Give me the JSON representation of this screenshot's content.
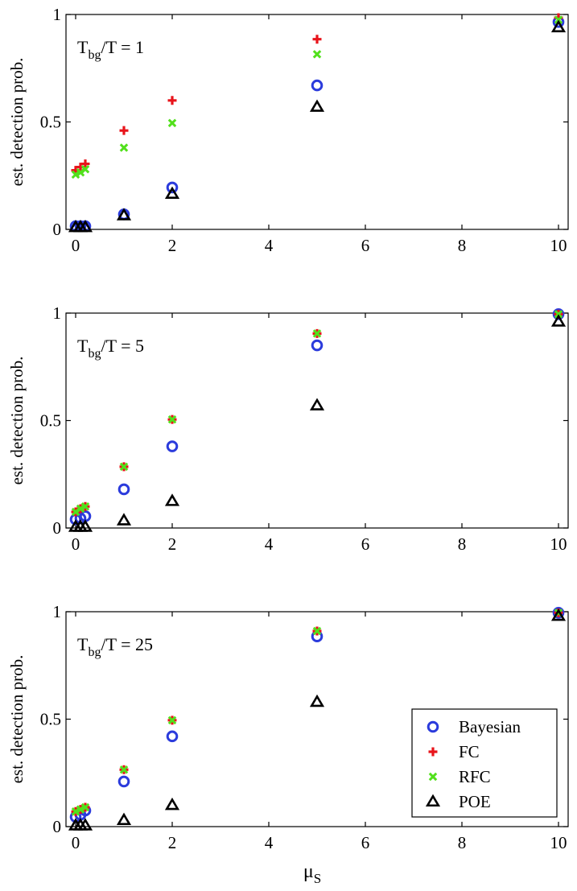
{
  "chart_data": [
    {
      "type": "scatter",
      "title": "",
      "annotation": {
        "main": "T",
        "sub": "bg",
        "rest": "/T = 1"
      },
      "xlabel": "",
      "ylabel": "est. detection prob.",
      "xlim": [
        -0.2,
        10.2
      ],
      "ylim": [
        0,
        1
      ],
      "xticks": [
        "0",
        "2",
        "4",
        "6",
        "8",
        "10"
      ],
      "yticks": [
        "0",
        "0.5",
        "1"
      ],
      "x": [
        0,
        0.1,
        0.2,
        1,
        2,
        5,
        10
      ],
      "series": [
        {
          "name": "Bayesian",
          "values": [
            0.015,
            0.015,
            0.015,
            0.07,
            0.195,
            0.67,
            0.965
          ]
        },
        {
          "name": "FC",
          "values": [
            0.275,
            0.29,
            0.305,
            0.46,
            0.6,
            0.885,
            0.985
          ]
        },
        {
          "name": "RFC",
          "values": [
            0.255,
            0.265,
            0.28,
            0.38,
            0.495,
            0.815,
            0.975
          ]
        },
        {
          "name": "POE",
          "values": [
            0.01,
            0.01,
            0.01,
            0.065,
            0.165,
            0.57,
            0.94
          ]
        }
      ]
    },
    {
      "type": "scatter",
      "title": "",
      "annotation": {
        "main": "T",
        "sub": "bg",
        "rest": "/T = 5"
      },
      "xlabel": "",
      "ylabel": "est. detection prob.",
      "xlim": [
        -0.2,
        10.2
      ],
      "ylim": [
        0,
        1
      ],
      "xticks": [
        "0",
        "2",
        "4",
        "6",
        "8",
        "10"
      ],
      "yticks": [
        "0",
        "0.5",
        "1"
      ],
      "x": [
        0,
        0.1,
        0.2,
        1,
        2,
        5,
        10
      ],
      "series": [
        {
          "name": "Bayesian",
          "values": [
            0.04,
            0.045,
            0.055,
            0.18,
            0.38,
            0.85,
            0.995
          ]
        },
        {
          "name": "FC",
          "values": [
            0.075,
            0.09,
            0.1,
            0.285,
            0.505,
            0.905,
            0.995
          ]
        },
        {
          "name": "RFC",
          "values": [
            0.075,
            0.09,
            0.1,
            0.285,
            0.505,
            0.905,
            0.995
          ]
        },
        {
          "name": "POE",
          "values": [
            0.005,
            0.005,
            0.005,
            0.035,
            0.125,
            0.57,
            0.96
          ]
        }
      ]
    },
    {
      "type": "scatter",
      "title": "",
      "annotation": {
        "main": "T",
        "sub": "bg",
        "rest": "/T = 25"
      },
      "xlabel": "μ",
      "xlabel_sub": "S",
      "ylabel": "est. detection prob.",
      "xlim": [
        -0.2,
        10.2
      ],
      "ylim": [
        0,
        1
      ],
      "xticks": [
        "0",
        "2",
        "4",
        "6",
        "8",
        "10"
      ],
      "yticks": [
        "0",
        "0.5",
        "1"
      ],
      "x": [
        0,
        0.1,
        0.2,
        1,
        2,
        5,
        10
      ],
      "series": [
        {
          "name": "Bayesian",
          "values": [
            0.045,
            0.055,
            0.075,
            0.21,
            0.42,
            0.885,
            0.995
          ]
        },
        {
          "name": "FC",
          "values": [
            0.07,
            0.08,
            0.09,
            0.265,
            0.495,
            0.91,
            0.995
          ]
        },
        {
          "name": "RFC",
          "values": [
            0.07,
            0.08,
            0.09,
            0.265,
            0.495,
            0.91,
            0.995
          ]
        },
        {
          "name": "POE",
          "values": [
            0.005,
            0.005,
            0.005,
            0.03,
            0.1,
            0.58,
            0.98
          ]
        }
      ]
    }
  ],
  "legend": {
    "placement": "bottom-right",
    "entries": [
      {
        "name": "Bayesian",
        "marker": "circle"
      },
      {
        "name": "FC",
        "marker": "plus"
      },
      {
        "name": "RFC",
        "marker": "cross"
      },
      {
        "name": "POE",
        "marker": "triangle"
      }
    ]
  },
  "colors": {
    "Bayesian": "#2b3bdc",
    "FC": "#e8141b",
    "RFC": "#52e01c",
    "POE": "#000000"
  }
}
